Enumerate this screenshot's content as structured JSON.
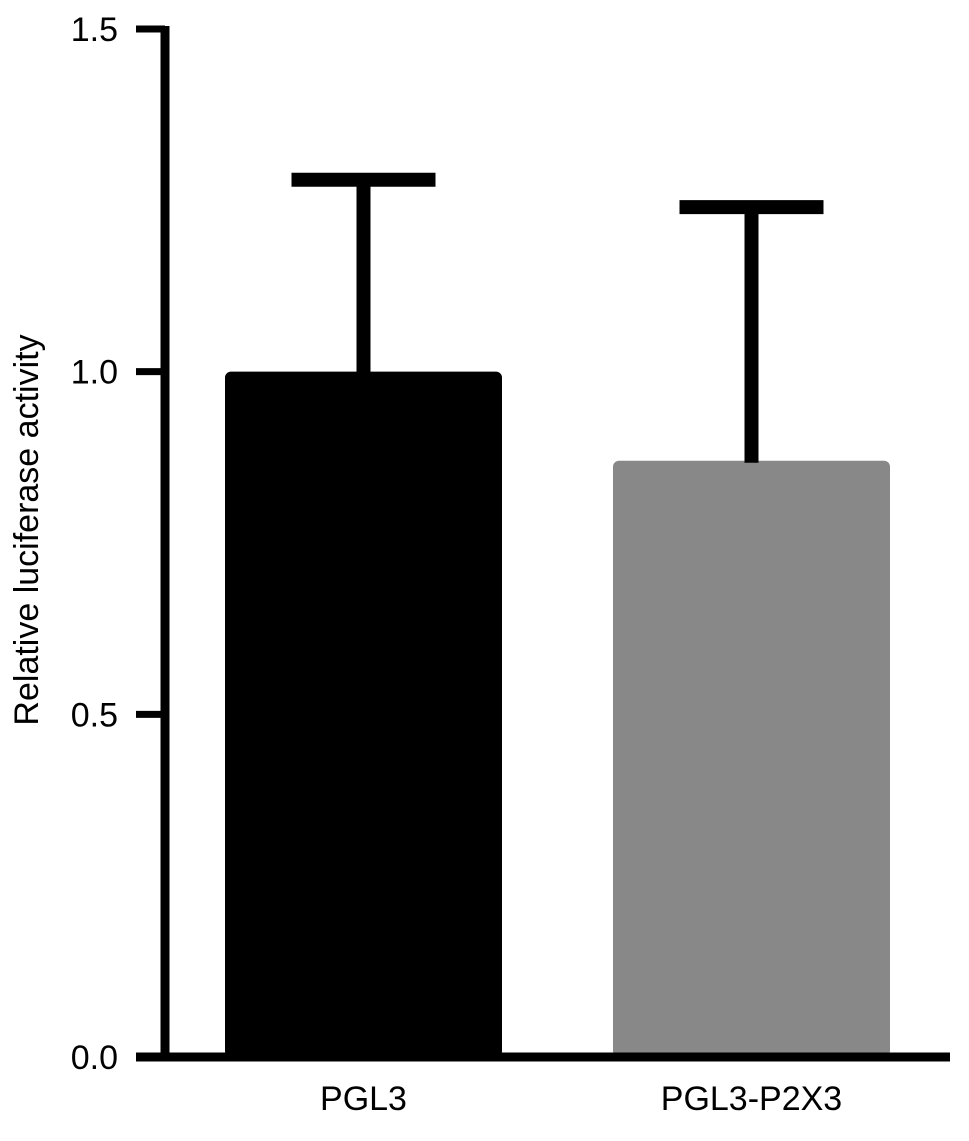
{
  "chart_data": {
    "type": "bar",
    "title": "",
    "xlabel": "",
    "ylabel": "Relative luciferase activity",
    "ylim": [
      0,
      1.5
    ],
    "yticks": [
      "0.0",
      "0.5",
      "1.0",
      "1.5"
    ],
    "categories": [
      "PGL3",
      "PGL3-P2X3"
    ],
    "values": [
      1.0,
      0.87
    ],
    "errors": [
      0.28,
      0.37
    ],
    "colors": [
      "#000000",
      "#888888"
    ],
    "grid": false,
    "legend": "none"
  }
}
